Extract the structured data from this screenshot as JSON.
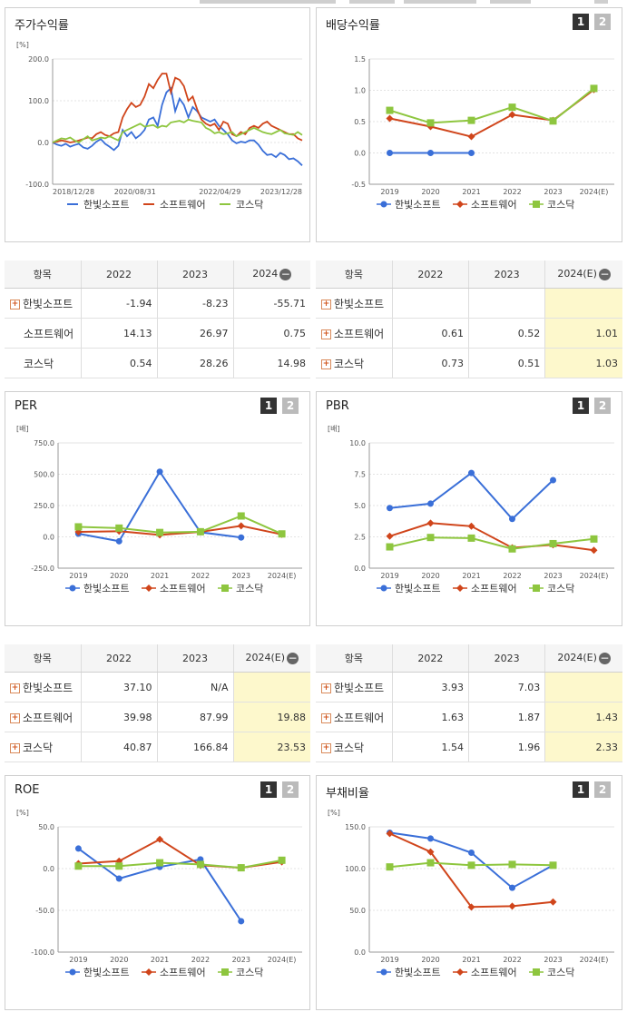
{
  "colors": {
    "s1": "#3a6fd8",
    "s2": "#d0451b",
    "s3": "#8ec63f",
    "axis": "#999999",
    "grid": "#e3e3e3"
  },
  "series_names": [
    "한빛소프트",
    "소프트웨어",
    "코스닥"
  ],
  "charts": [
    {
      "id": "stock",
      "title": "주가수익률",
      "unit": "[%]",
      "pager": [],
      "chart_data": {
        "type": "line",
        "title": "주가수익률",
        "ylabel": "[%]",
        "ylim": [
          -100,
          200
        ],
        "yticks": [
          "200.0",
          "100.0",
          "0.0",
          "-100.0"
        ],
        "xticks": [
          "2018/12/28",
          "2020/08/31",
          "2022/04/29",
          "2023/12/28"
        ],
        "xticks_pos": [
          0,
          0.33,
          0.67,
          1
        ],
        "series": [
          {
            "name": "한빛소프트",
            "values": [
              0,
              -5,
              -8,
              -3,
              -10,
              -6,
              -3,
              -12,
              -15,
              -8,
              2,
              8,
              -3,
              -10,
              -18,
              -8,
              30,
              15,
              25,
              10,
              18,
              30,
              55,
              60,
              40,
              90,
              120,
              130,
              75,
              105,
              90,
              60,
              85,
              75,
              60,
              55,
              50,
              55,
              40,
              30,
              20,
              5,
              -2,
              2,
              0,
              5,
              5,
              -5,
              -20,
              -30,
              -28,
              -35,
              -25,
              -30,
              -40,
              -38,
              -45,
              -55
            ]
          },
          {
            "name": "소프트웨어",
            "values": [
              0,
              2,
              5,
              3,
              0,
              2,
              5,
              8,
              12,
              10,
              20,
              25,
              18,
              15,
              22,
              25,
              60,
              80,
              95,
              85,
              90,
              110,
              140,
              130,
              150,
              165,
              165,
              120,
              155,
              150,
              135,
              100,
              110,
              80,
              55,
              45,
              40,
              45,
              30,
              50,
              45,
              20,
              15,
              25,
              20,
              35,
              40,
              35,
              45,
              50,
              40,
              35,
              30,
              25,
              20,
              20,
              10,
              5
            ]
          },
          {
            "name": "코스닥",
            "values": [
              0,
              5,
              10,
              8,
              12,
              5,
              0,
              8,
              15,
              5,
              8,
              12,
              10,
              15,
              10,
              5,
              25,
              30,
              35,
              40,
              45,
              38,
              40,
              42,
              35,
              40,
              38,
              48,
              50,
              52,
              48,
              55,
              52,
              50,
              48,
              35,
              30,
              22,
              25,
              20,
              22,
              25,
              15,
              20,
              25,
              30,
              35,
              30,
              25,
              22,
              20,
              25,
              30,
              22,
              20,
              18,
              25,
              18
            ]
          }
        ]
      }
    },
    {
      "id": "dividend",
      "title": "배당수익률",
      "unit": "",
      "pager": [
        "1",
        "2"
      ],
      "chart_data": {
        "type": "line",
        "title": "배당수익률",
        "ylim": [
          -0.5,
          1.5
        ],
        "yticks": [
          "1.5",
          "1.0",
          "0.5",
          "0.0",
          "-0.5"
        ],
        "categories": [
          "2019",
          "2020",
          "2021",
          "2022",
          "2023",
          "2024(E)"
        ],
        "series": [
          {
            "name": "한빛소프트",
            "values": [
              0,
              0,
              0,
              null,
              null,
              null
            ]
          },
          {
            "name": "소프트웨어",
            "values": [
              0.55,
              0.42,
              0.26,
              0.61,
              0.52,
              1.01
            ]
          },
          {
            "name": "코스닥",
            "values": [
              0.68,
              0.48,
              0.52,
              0.73,
              0.51,
              1.03
            ]
          }
        ]
      }
    },
    {
      "id": "per",
      "title": "PER",
      "unit": "[배]",
      "pager": [
        "1",
        "2"
      ],
      "chart_data": {
        "type": "line",
        "title": "PER",
        "ylabel": "[배]",
        "ylim": [
          -250,
          750
        ],
        "yticks": [
          "750.0",
          "500.0",
          "250.0",
          "0.0",
          "-250.0"
        ],
        "categories": [
          "2019",
          "2020",
          "2021",
          "2022",
          "2023",
          "2024(E)"
        ],
        "series": [
          {
            "name": "한빛소프트",
            "values": [
              25,
              -35,
              520,
              37.1,
              -5,
              null
            ]
          },
          {
            "name": "소프트웨어",
            "values": [
              40,
              45,
              15,
              39.98,
              87.99,
              19.88
            ]
          },
          {
            "name": "코스닥",
            "values": [
              80,
              70,
              35,
              40.87,
              166.84,
              23.53
            ]
          }
        ]
      }
    },
    {
      "id": "pbr",
      "title": "PBR",
      "unit": "[배]",
      "pager": [
        "1",
        "2"
      ],
      "chart_data": {
        "type": "line",
        "title": "PBR",
        "ylabel": "[배]",
        "ylim": [
          0,
          10
        ],
        "yticks": [
          "10.0",
          "7.5",
          "5.0",
          "2.5",
          "0.0"
        ],
        "categories": [
          "2019",
          "2020",
          "2021",
          "2022",
          "2023",
          "2024(E)"
        ],
        "series": [
          {
            "name": "한빛소프트",
            "values": [
              4.8,
              5.15,
              7.6,
              3.93,
              7.03,
              null
            ]
          },
          {
            "name": "소프트웨어",
            "values": [
              2.55,
              3.6,
              3.35,
              1.63,
              1.87,
              1.43
            ]
          },
          {
            "name": "코스닥",
            "values": [
              1.7,
              2.45,
              2.4,
              1.54,
              1.96,
              2.33
            ]
          }
        ]
      }
    },
    {
      "id": "roe",
      "title": "ROE",
      "unit": "[%]",
      "pager": [
        "1",
        "2"
      ],
      "chart_data": {
        "type": "line",
        "title": "ROE",
        "ylabel": "[%]",
        "ylim": [
          -100,
          50
        ],
        "yticks": [
          "50.0",
          "0.0",
          "-50.0",
          "-100.0"
        ],
        "categories": [
          "2019",
          "2020",
          "2021",
          "2022",
          "2023",
          "2024(E)"
        ],
        "series": [
          {
            "name": "한빛소프트",
            "values": [
              24,
              -12,
              2,
              11,
              -63,
              null
            ]
          },
          {
            "name": "소프트웨어",
            "values": [
              6,
              9,
              35,
              4,
              1,
              8
            ]
          },
          {
            "name": "코스닥",
            "values": [
              3,
              3,
              7,
              5,
              1,
              10
            ]
          }
        ]
      }
    },
    {
      "id": "debt",
      "title": "부채비율",
      "unit": "[%]",
      "pager": [
        "1",
        "2"
      ],
      "chart_data": {
        "type": "line",
        "title": "부채비율",
        "ylabel": "[%]",
        "ylim": [
          0,
          150
        ],
        "yticks": [
          "150.0",
          "100.0",
          "50.0",
          "0.0"
        ],
        "categories": [
          "2019",
          "2020",
          "2021",
          "2022",
          "2023",
          "2024(E)"
        ],
        "series": [
          {
            "name": "한빛소프트",
            "values": [
              143,
              136,
              119,
              77,
              104,
              null
            ]
          },
          {
            "name": "소프트웨어",
            "values": [
              142,
              120,
              54,
              55,
              60,
              null
            ]
          },
          {
            "name": "코스닥",
            "values": [
              102,
              107,
              104,
              105,
              104,
              null
            ]
          }
        ]
      }
    }
  ],
  "tables": [
    {
      "id": "t-stock",
      "header": [
        "항목",
        "2022",
        "2023",
        "2024"
      ],
      "collapse": "−",
      "highlight": false,
      "rows": [
        {
          "name": "한빛소프트",
          "plus": "+",
          "values": [
            "-1.94",
            "-8.23",
            "-55.71"
          ]
        },
        {
          "name": "소프트웨어",
          "plus": "",
          "values": [
            "14.13",
            "26.97",
            "0.75"
          ]
        },
        {
          "name": "코스닥",
          "plus": "",
          "values": [
            "0.54",
            "28.26",
            "14.98"
          ]
        }
      ]
    },
    {
      "id": "t-dividend",
      "header": [
        "항목",
        "2022",
        "2023",
        "2024(E)"
      ],
      "collapse": "−",
      "highlight": true,
      "rows": [
        {
          "name": "한빛소프트",
          "plus": "+",
          "values": [
            "",
            "",
            ""
          ]
        },
        {
          "name": "소프트웨어",
          "plus": "+",
          "values": [
            "0.61",
            "0.52",
            "1.01"
          ]
        },
        {
          "name": "코스닥",
          "plus": "+",
          "values": [
            "0.73",
            "0.51",
            "1.03"
          ]
        }
      ]
    },
    {
      "id": "t-per",
      "header": [
        "항목",
        "2022",
        "2023",
        "2024(E)"
      ],
      "collapse": "−",
      "highlight": true,
      "rows": [
        {
          "name": "한빛소프트",
          "plus": "+",
          "values": [
            "37.10",
            "N/A",
            ""
          ]
        },
        {
          "name": "소프트웨어",
          "plus": "+",
          "values": [
            "39.98",
            "87.99",
            "19.88"
          ]
        },
        {
          "name": "코스닥",
          "plus": "+",
          "values": [
            "40.87",
            "166.84",
            "23.53"
          ]
        }
      ]
    },
    {
      "id": "t-pbr",
      "header": [
        "항목",
        "2022",
        "2023",
        "2024(E)"
      ],
      "collapse": "−",
      "highlight": true,
      "rows": [
        {
          "name": "한빛소프트",
          "plus": "+",
          "values": [
            "3.93",
            "7.03",
            ""
          ]
        },
        {
          "name": "소프트웨어",
          "plus": "+",
          "values": [
            "1.63",
            "1.87",
            "1.43"
          ]
        },
        {
          "name": "코스닥",
          "plus": "+",
          "values": [
            "1.54",
            "1.96",
            "2.33"
          ]
        }
      ]
    }
  ]
}
